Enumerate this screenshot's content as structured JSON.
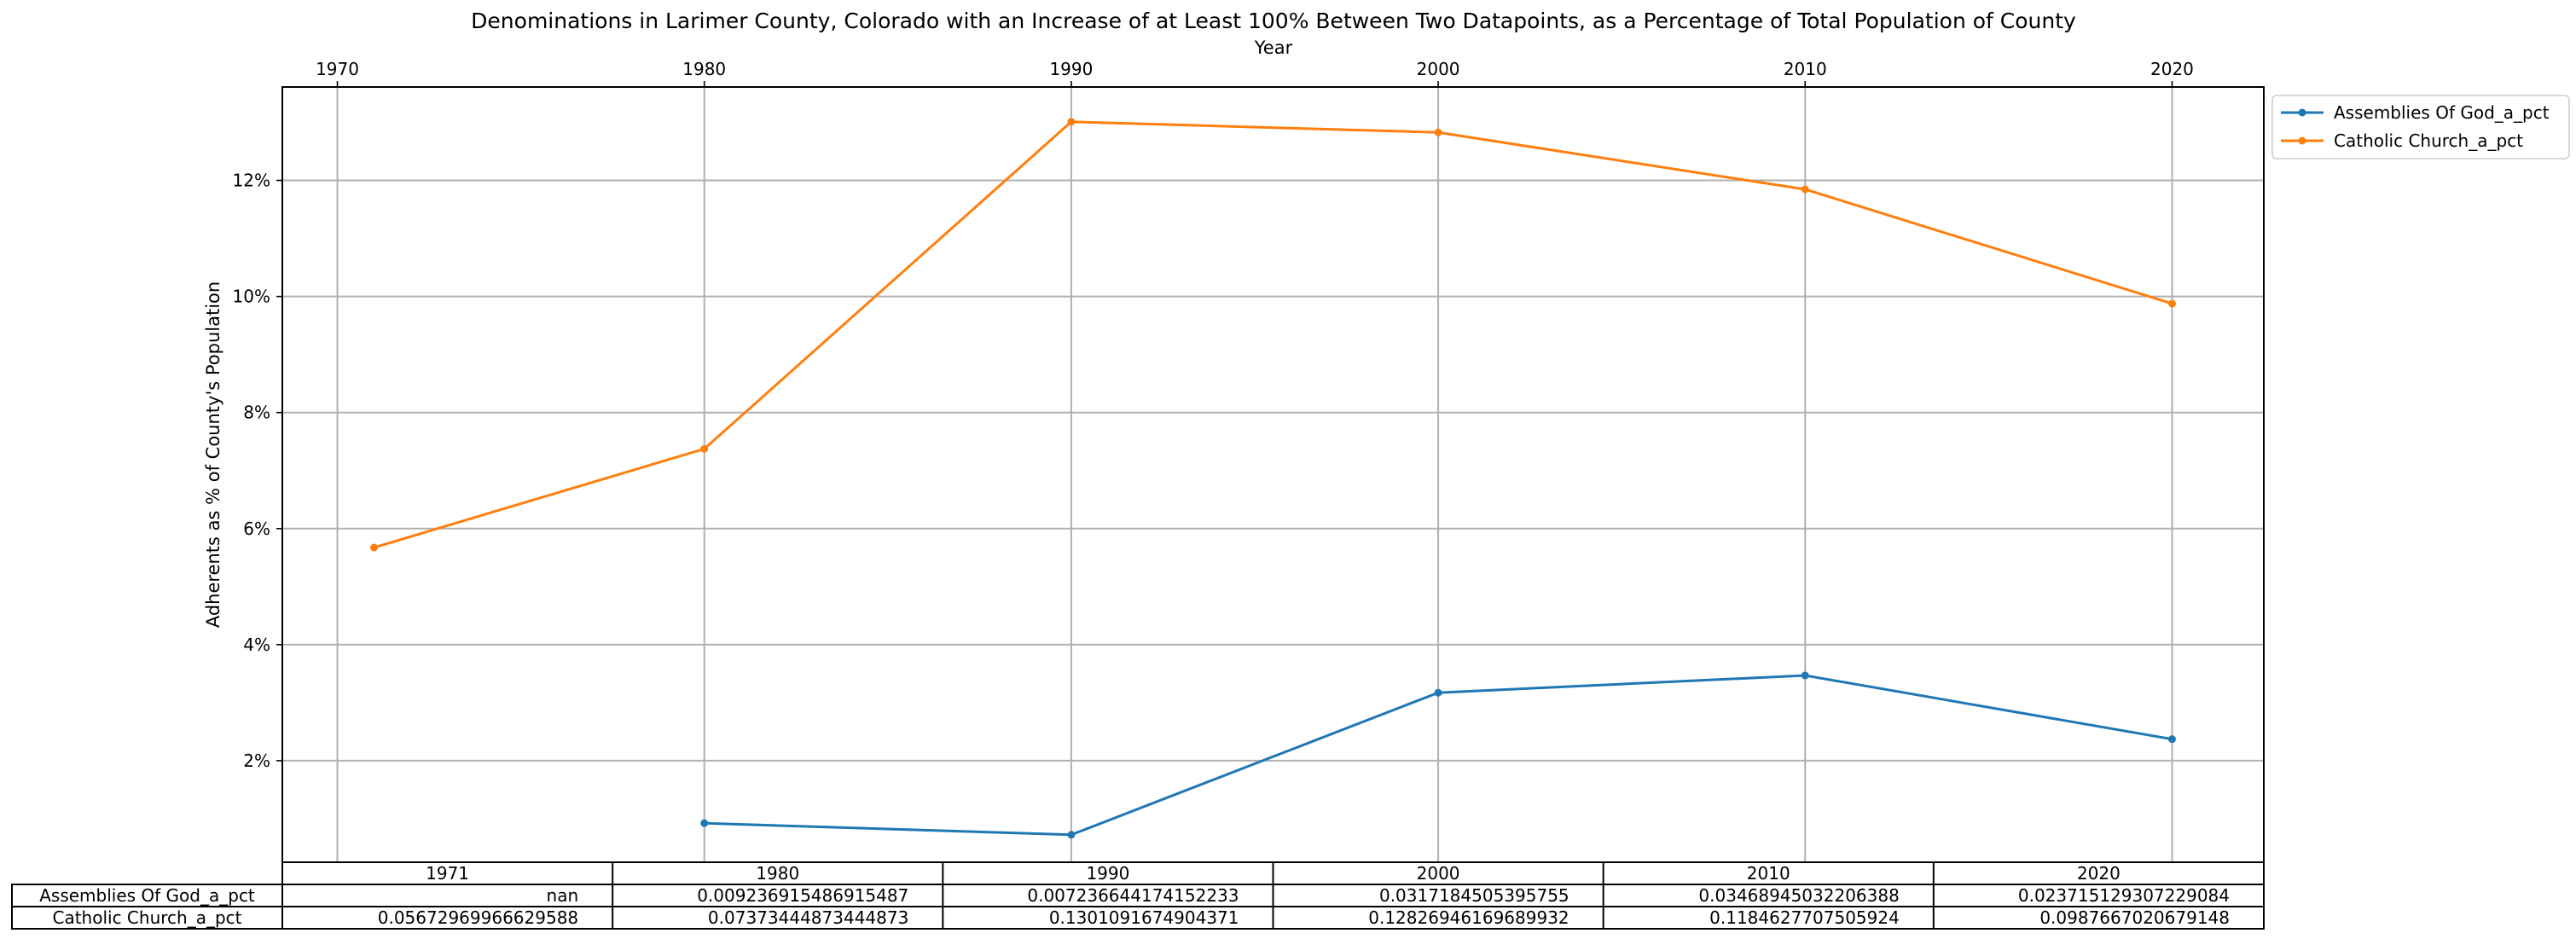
{
  "chart_data": {
    "type": "line",
    "title": "Denominations in Larimer County, Colorado with an Increase of at Least 100% Between Two Datapoints, as a Percentage of Total Population of County",
    "xlabel": "Year",
    "ylabel": "Adherents as % of County's Population",
    "x_ticks": [
      1970,
      1980,
      1990,
      2000,
      2010,
      2020
    ],
    "x_tick_labels": [
      "1970",
      "1980",
      "1990",
      "2000",
      "2010",
      "2020"
    ],
    "y_ticks": [
      0.02,
      0.04,
      0.06,
      0.08,
      0.1,
      0.12
    ],
    "y_tick_labels": [
      "2%",
      "4%",
      "6%",
      "8%",
      "10%",
      "12%"
    ],
    "xlim": [
      1968.5,
      2022.5
    ],
    "ylim": [
      0.0025,
      0.1361
    ],
    "grid": true,
    "legend_position": "outside-upper-right",
    "x": [
      1971,
      1980,
      1990,
      2000,
      2010,
      2020
    ],
    "series": [
      {
        "name": "Assemblies Of God_a_pct",
        "color": "#1f77b4",
        "values": [
          null,
          0.00923691548691549,
          0.00723664417415223,
          0.0317184505395755,
          0.0346894503220639,
          0.0237151293072291
        ]
      },
      {
        "name": "Catholic Church_a_pct",
        "color": "#ff7f0e",
        "values": [
          0.0567296996662959,
          0.0737344487344487,
          0.130109167490437,
          0.128269461696899,
          0.118462770750592,
          0.0987667020679148
        ]
      }
    ],
    "table": {
      "col_labels": [
        "1971",
        "1980",
        "1990",
        "2000",
        "2010",
        "2020"
      ],
      "rows": [
        {
          "label": "Assemblies Of God_a_pct",
          "cells": [
            "nan",
            "0.009236915486915487",
            "0.007236644174152233",
            "0.0317184505395755",
            "0.03468945032206388",
            "0.023715129307229084"
          ]
        },
        {
          "label": "Catholic Church_a_pct",
          "cells": [
            "0.05672969966629588",
            "0.07373444873444873",
            "0.1301091674904371",
            "0.12826946169689932",
            "0.1184627707505924",
            "0.0987667020679148"
          ]
        }
      ]
    }
  }
}
